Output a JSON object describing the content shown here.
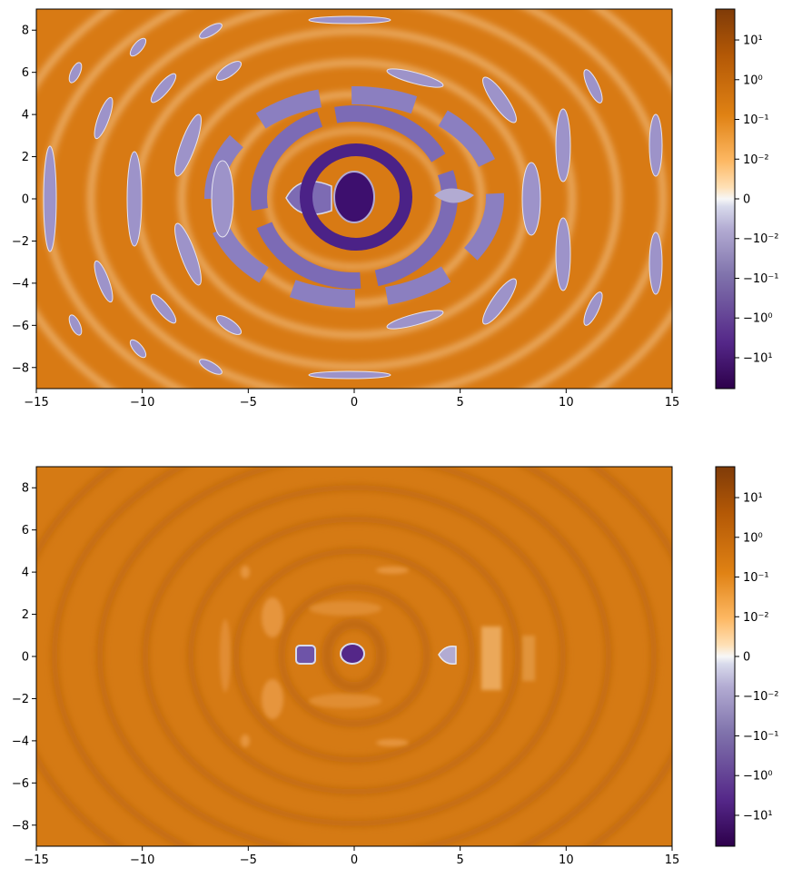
{
  "chart_data": [
    {
      "type": "heatmap",
      "title": "",
      "xlabel": "",
      "ylabel": "",
      "xlim": [
        -15,
        15
      ],
      "ylim": [
        -9,
        9
      ],
      "x_ticks": [
        -15,
        -10,
        -5,
        0,
        5,
        10,
        15
      ],
      "x_tick_labels": [
        "−15",
        "−10",
        "−5",
        "0",
        "5",
        "10",
        "15"
      ],
      "y_ticks": [
        -8,
        -6,
        -4,
        -2,
        0,
        2,
        4,
        6,
        8
      ],
      "y_tick_labels": [
        "−8",
        "−6",
        "−4",
        "−2",
        "0",
        "2",
        "4",
        "6",
        "8"
      ],
      "colormap": "PuOr_r",
      "colorbar": {
        "scale": "symlog",
        "range": [
          -60,
          60
        ],
        "ticks": [
          -10,
          -1,
          -0.1,
          -0.01,
          0,
          0.01,
          0.1,
          1,
          10
        ],
        "tick_labels": [
          "−10¹",
          "−10⁰",
          "−10⁻¹",
          "−10⁻²",
          "0",
          "10⁻²",
          "10⁻¹",
          "10⁰",
          "10¹"
        ]
      },
      "pattern": "concentric ring interference pattern, strong negative lobes near origin"
    },
    {
      "type": "heatmap",
      "title": "",
      "xlabel": "",
      "ylabel": "",
      "xlim": [
        -15,
        15
      ],
      "ylim": [
        -9,
        9
      ],
      "x_ticks": [
        -15,
        -10,
        -5,
        0,
        5,
        10,
        15
      ],
      "x_tick_labels": [
        "−15",
        "−10",
        "−5",
        "0",
        "5",
        "10",
        "15"
      ],
      "y_ticks": [
        -8,
        -6,
        -4,
        -2,
        0,
        2,
        4,
        6,
        8
      ],
      "y_tick_labels": [
        "−8",
        "−6",
        "−4",
        "−2",
        "0",
        "2",
        "4",
        "6",
        "8"
      ],
      "colormap": "PuOr_r",
      "colorbar": {
        "scale": "symlog",
        "range": [
          -60,
          60
        ],
        "ticks": [
          -10,
          -1,
          -0.1,
          -0.01,
          0,
          0.01,
          0.1,
          1,
          10
        ],
        "tick_labels": [
          "−10¹",
          "−10⁰",
          "−10⁻¹",
          "−10⁻²",
          "0",
          "10⁻²",
          "10⁻¹",
          "10⁰",
          "10¹"
        ]
      },
      "pattern": "mostly positive concentric rings, small negative regions near origin"
    }
  ],
  "colors": {
    "orange": "#d87a14",
    "dark_orange": "#b8630a",
    "purple_dark": "#3d0f6e",
    "purple_light": "#b2abd2",
    "white": "#f7f7f7"
  }
}
